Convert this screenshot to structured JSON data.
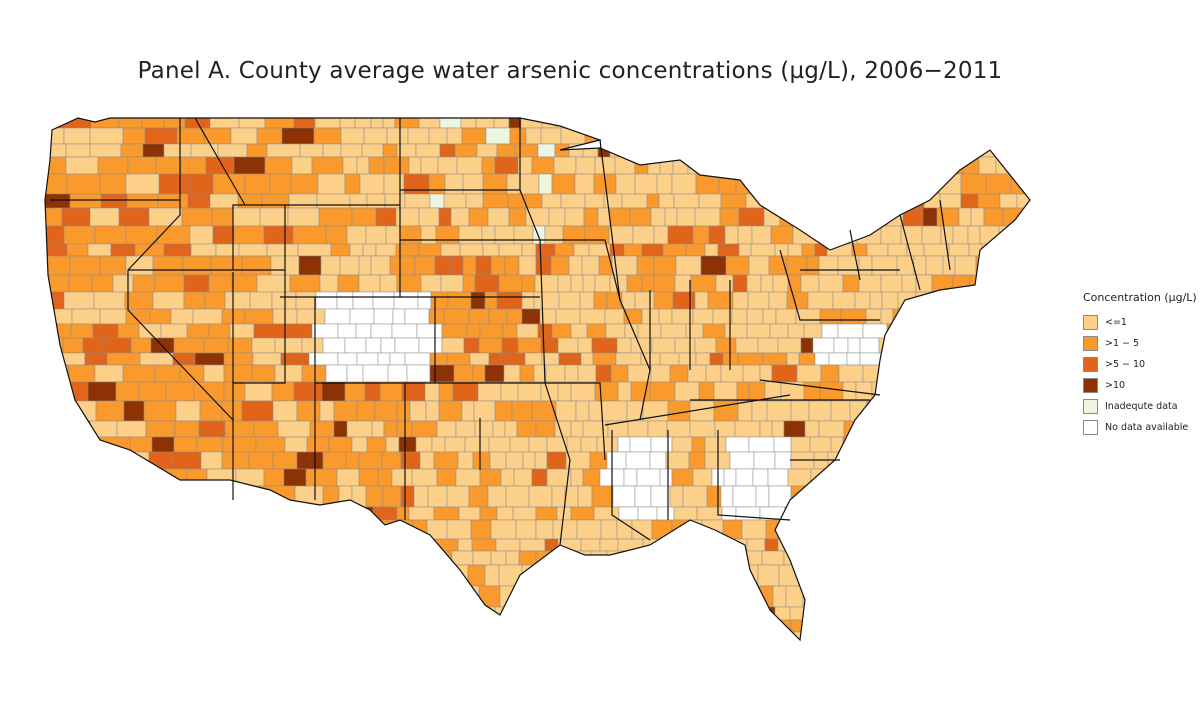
{
  "title": "Panel A. County average water arsenic concentrations (µg/L), 2006−2011",
  "legend": {
    "title": "Concentration (µg/L)",
    "items": [
      {
        "label": "<=1",
        "color": "#fdd08a"
      },
      {
        "label": ">1 − 5",
        "color": "#fb9a2c"
      },
      {
        "label": ">5 − 10",
        "color": "#e0641a"
      },
      {
        "label": ">10",
        "color": "#8c3204"
      },
      {
        "label": "Inadequte data",
        "color": "#eef6e0"
      },
      {
        "label": "No data available",
        "color": "#ffffff"
      }
    ]
  },
  "map": {
    "region": "Contiguous United States",
    "unit": "county",
    "colors": {
      "low": "#fdd08a",
      "mid": "#fb9a2c",
      "high": "#e0641a",
      "very_high": "#8c3204",
      "inadequate": "#eef6e0",
      "none": "#ffffff",
      "county_border": "#8a8a8a",
      "state_border": "#111111"
    }
  }
}
